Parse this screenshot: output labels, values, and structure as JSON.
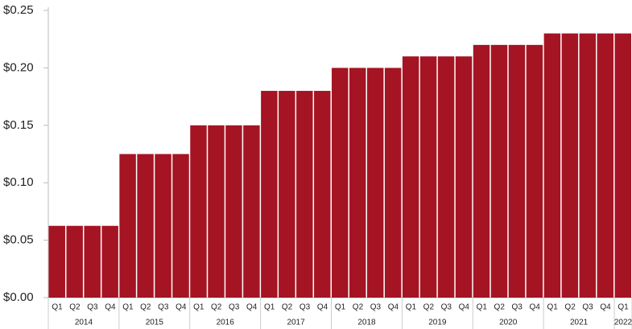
{
  "chart_data": {
    "type": "bar",
    "color": "#a51423",
    "category_groups": [
      {
        "label": "2014",
        "categories": [
          "Q1",
          "Q2",
          "Q3",
          "Q4"
        ]
      },
      {
        "label": "2015",
        "categories": [
          "Q1",
          "Q2",
          "Q3",
          "Q4"
        ]
      },
      {
        "label": "2016",
        "categories": [
          "Q1",
          "Q2",
          "Q3",
          "Q4"
        ]
      },
      {
        "label": "2017",
        "categories": [
          "Q1",
          "Q2",
          "Q3",
          "Q4"
        ]
      },
      {
        "label": "2018",
        "categories": [
          "Q1",
          "Q2",
          "Q3",
          "Q4"
        ]
      },
      {
        "label": "2019",
        "categories": [
          "Q1",
          "Q2",
          "Q3",
          "Q4"
        ]
      },
      {
        "label": "2020",
        "categories": [
          "Q1",
          "Q2",
          "Q3",
          "Q4"
        ]
      },
      {
        "label": "2021",
        "categories": [
          "Q1",
          "Q2",
          "Q3",
          "Q4"
        ]
      },
      {
        "label": "2022",
        "categories": [
          "Q1"
        ]
      }
    ],
    "values": [
      0.0625,
      0.0625,
      0.0625,
      0.0625,
      0.125,
      0.125,
      0.125,
      0.125,
      0.15,
      0.15,
      0.15,
      0.15,
      0.18,
      0.18,
      0.18,
      0.18,
      0.2,
      0.2,
      0.2,
      0.2,
      0.21,
      0.21,
      0.21,
      0.21,
      0.22,
      0.22,
      0.22,
      0.22,
      0.23,
      0.23,
      0.23,
      0.23,
      0.23
    ],
    "ylim": [
      0,
      0.25
    ],
    "yticks": [
      {
        "value": 0,
        "label": "$0.00"
      },
      {
        "value": 0.05,
        "label": "$0.05"
      },
      {
        "value": 0.1,
        "label": "$0.10"
      },
      {
        "value": 0.15,
        "label": "$0.15"
      },
      {
        "value": 0.2,
        "label": "$0.20"
      },
      {
        "value": 0.25,
        "label": "$0.25"
      }
    ]
  }
}
